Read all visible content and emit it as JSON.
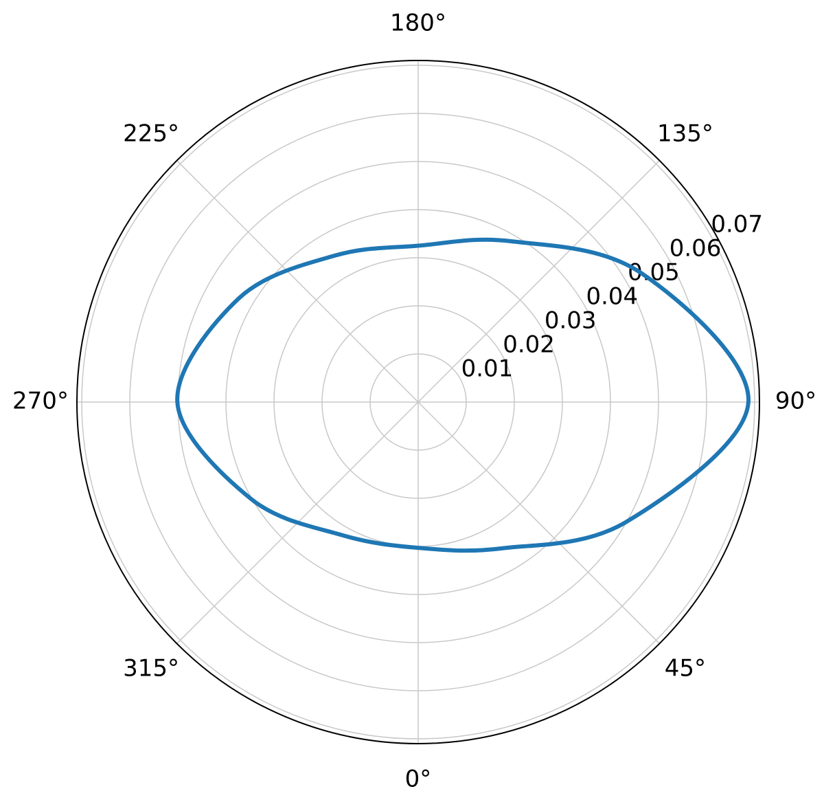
{
  "chart_data": {
    "type": "polar",
    "theta_zero": "S",
    "theta_direction": "counterclockwise",
    "x": [
      0,
      30,
      60,
      90,
      120,
      150,
      180,
      210,
      240,
      270,
      300,
      330
    ],
    "series": [
      {
        "color": "#1f77b4",
        "values": [
          0.0303,
          0.0351,
          0.0499,
          0.0687,
          0.0536,
          0.0386,
          0.0325,
          0.0351,
          0.0431,
          0.0501,
          0.0402,
          0.0319
        ]
      }
    ],
    "rlim": [
      0,
      0.071
    ],
    "rticks": [
      0.01,
      0.02,
      0.03,
      0.04,
      0.05,
      0.06,
      0.07
    ],
    "rlabel_angle": 120,
    "xticks": [
      {
        "value": 0,
        "label": "0°"
      },
      {
        "value": 45,
        "label": "45°"
      },
      {
        "value": 90,
        "label": "90°"
      },
      {
        "value": 135,
        "label": "135°"
      },
      {
        "value": 180,
        "label": "180°"
      },
      {
        "value": 225,
        "label": "225°"
      },
      {
        "value": 270,
        "label": "270°"
      },
      {
        "value": 315,
        "label": "315°"
      }
    ],
    "grid": true
  }
}
